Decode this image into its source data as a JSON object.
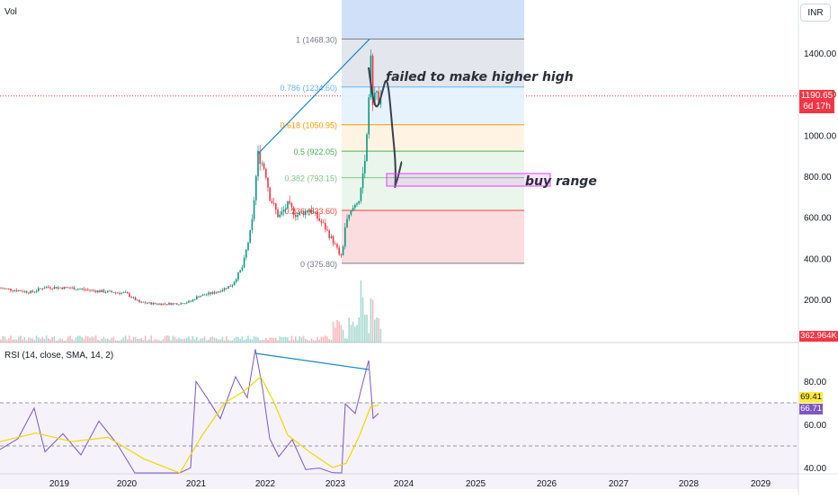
{
  "chart": {
    "volume_label": "Vol",
    "currency": "INR",
    "price_axis": [
      "1400.00",
      "1200.00",
      "1000.00",
      "800.00",
      "600.00",
      "400.00",
      "200.00"
    ],
    "last_price": "1190.65",
    "countdown": "6d 17h",
    "volume_value": "362.964K",
    "x_axis": [
      "2019",
      "2020",
      "2021",
      "2022",
      "2023",
      "2024",
      "2025",
      "2026",
      "2027",
      "2028",
      "2029"
    ],
    "fib_levels": [
      {
        "label": "1 (1468.30)",
        "price": 1468.3,
        "color": "#787b86",
        "fill": "#e0e3eb"
      },
      {
        "label": "0.786 (1234.60)",
        "price": 1234.6,
        "color": "#64b5f6",
        "fill": "#e3f2fd"
      },
      {
        "label": "0.618 (1050.95)",
        "price": 1050.95,
        "color": "#ff9800",
        "fill": "#fff3e0"
      },
      {
        "label": "0.5 (922.05)",
        "price": 922.05,
        "color": "#4caf50",
        "fill": "#e8f5e9"
      },
      {
        "label": "0.382 (793.15)",
        "price": 793.15,
        "color": "#81c784",
        "fill": "#e8f5e9"
      },
      {
        "label": "0.236 (633.60)",
        "price": 633.6,
        "color": "#f44336",
        "fill": "#fde0e0"
      },
      {
        "label": "0 (375.80)",
        "price": 375.8,
        "color": "#787b86",
        "fill": ""
      }
    ],
    "annotations": {
      "failed": "failed to make higher high",
      "buy": "buy range"
    },
    "colors": {
      "up": "#089981",
      "down": "#f23645",
      "trend": "#2962ff",
      "fib_top_fill": "#c9daf8",
      "rsi_line": "#7e57c2",
      "rsi_ma": "#f0d800",
      "buy_box": "#e040fb"
    }
  },
  "rsi": {
    "title": "RSI (14, close, SMA, 14, 2)",
    "axis": [
      "80.00",
      "60.00",
      "40.00"
    ],
    "value": "66.71",
    "ma_value": "69.41"
  }
}
